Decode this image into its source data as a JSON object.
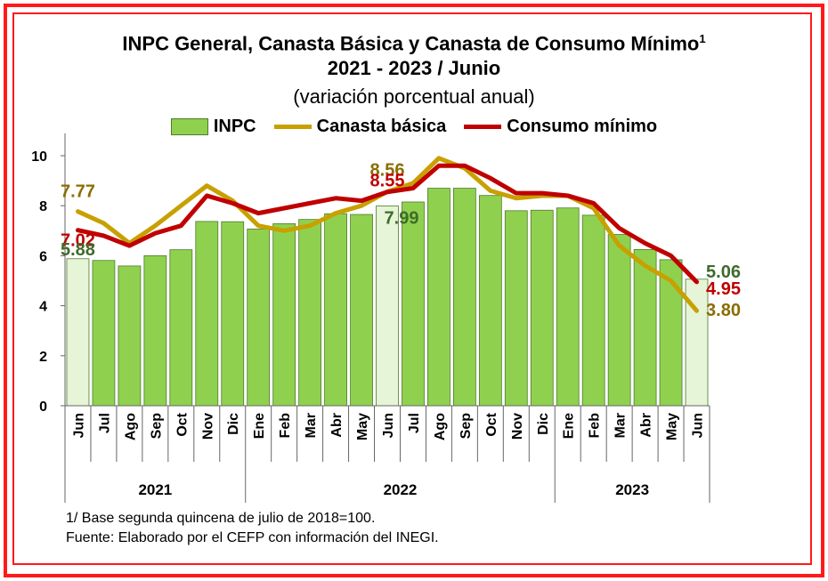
{
  "title": {
    "line1": "INPC General, Canasta Básica  y Canasta de Consumo Mínimo",
    "sup": "1",
    "line2": "2021 - 2023 / Junio",
    "line3": "(variación porcentual anual)"
  },
  "footnotes": {
    "note1": "1/ Base segunda quincena de julio de 2018=100.",
    "note2": "Fuente: Elaborado por el CEFP con información del INEGI."
  },
  "colors": {
    "bar": "#8fd14f",
    "bar_highlight": "#e6f4d7",
    "canasta": "#c8a000",
    "consumo": "#c00000",
    "frame": "#ff1a1a"
  },
  "chart_data": {
    "type": "bar",
    "categories": [
      "Jun",
      "Jul",
      "Ago",
      "Sep",
      "Oct",
      "Nov",
      "Dic",
      "Ene",
      "Feb",
      "Mar",
      "Abr",
      "May",
      "Jun",
      "Jul",
      "Ago",
      "Sep",
      "Oct",
      "Nov",
      "Dic",
      "Ene",
      "Feb",
      "Mar",
      "Abr",
      "May",
      "Jun"
    ],
    "groups": [
      {
        "label": "2021",
        "start": 0,
        "end": 6
      },
      {
        "label": "2022",
        "start": 7,
        "end": 18
      },
      {
        "label": "2023",
        "start": 19,
        "end": 24
      }
    ],
    "highlighted": [
      0,
      12,
      24
    ],
    "ylim": [
      0,
      10
    ],
    "yticks": [
      0,
      2,
      4,
      6,
      8,
      10
    ],
    "legend_position": "top",
    "series": [
      {
        "name": "INPC",
        "type": "bar",
        "values": [
          5.88,
          5.81,
          5.59,
          6.0,
          6.24,
          7.37,
          7.36,
          7.07,
          7.28,
          7.45,
          7.68,
          7.65,
          7.99,
          8.15,
          8.7,
          8.7,
          8.41,
          7.8,
          7.82,
          7.91,
          7.62,
          6.85,
          6.25,
          5.84,
          5.06
        ]
      },
      {
        "name": "Canasta básica",
        "type": "line",
        "values": [
          7.77,
          7.3,
          6.5,
          7.2,
          8.0,
          8.8,
          8.2,
          7.2,
          7.0,
          7.2,
          7.7,
          8.0,
          8.56,
          8.9,
          9.9,
          9.5,
          8.6,
          8.3,
          8.4,
          8.4,
          7.9,
          6.4,
          5.6,
          5.0,
          3.8
        ]
      },
      {
        "name": "Consumo mínimo",
        "type": "line",
        "values": [
          7.02,
          6.8,
          6.4,
          6.9,
          7.2,
          8.4,
          8.1,
          7.7,
          7.9,
          8.1,
          8.3,
          8.2,
          8.55,
          8.7,
          9.6,
          9.6,
          9.1,
          8.5,
          8.5,
          8.4,
          8.1,
          7.1,
          6.5,
          6.0,
          4.95
        ]
      }
    ],
    "data_labels": [
      {
        "series": "Canasta básica",
        "index": 0,
        "text": "7.77"
      },
      {
        "series": "Consumo mínimo",
        "index": 0,
        "text": "7.02"
      },
      {
        "series": "INPC",
        "index": 0,
        "text": "5.88"
      },
      {
        "series": "Canasta básica",
        "index": 12,
        "text": "8.56"
      },
      {
        "series": "Consumo mínimo",
        "index": 12,
        "text": "8.55"
      },
      {
        "series": "INPC",
        "index": 12,
        "text": "7.99"
      },
      {
        "series": "INPC",
        "index": 24,
        "text": "5.06"
      },
      {
        "series": "Consumo mínimo",
        "index": 24,
        "text": "4.95"
      },
      {
        "series": "Canasta básica",
        "index": 24,
        "text": "3.80"
      }
    ]
  }
}
